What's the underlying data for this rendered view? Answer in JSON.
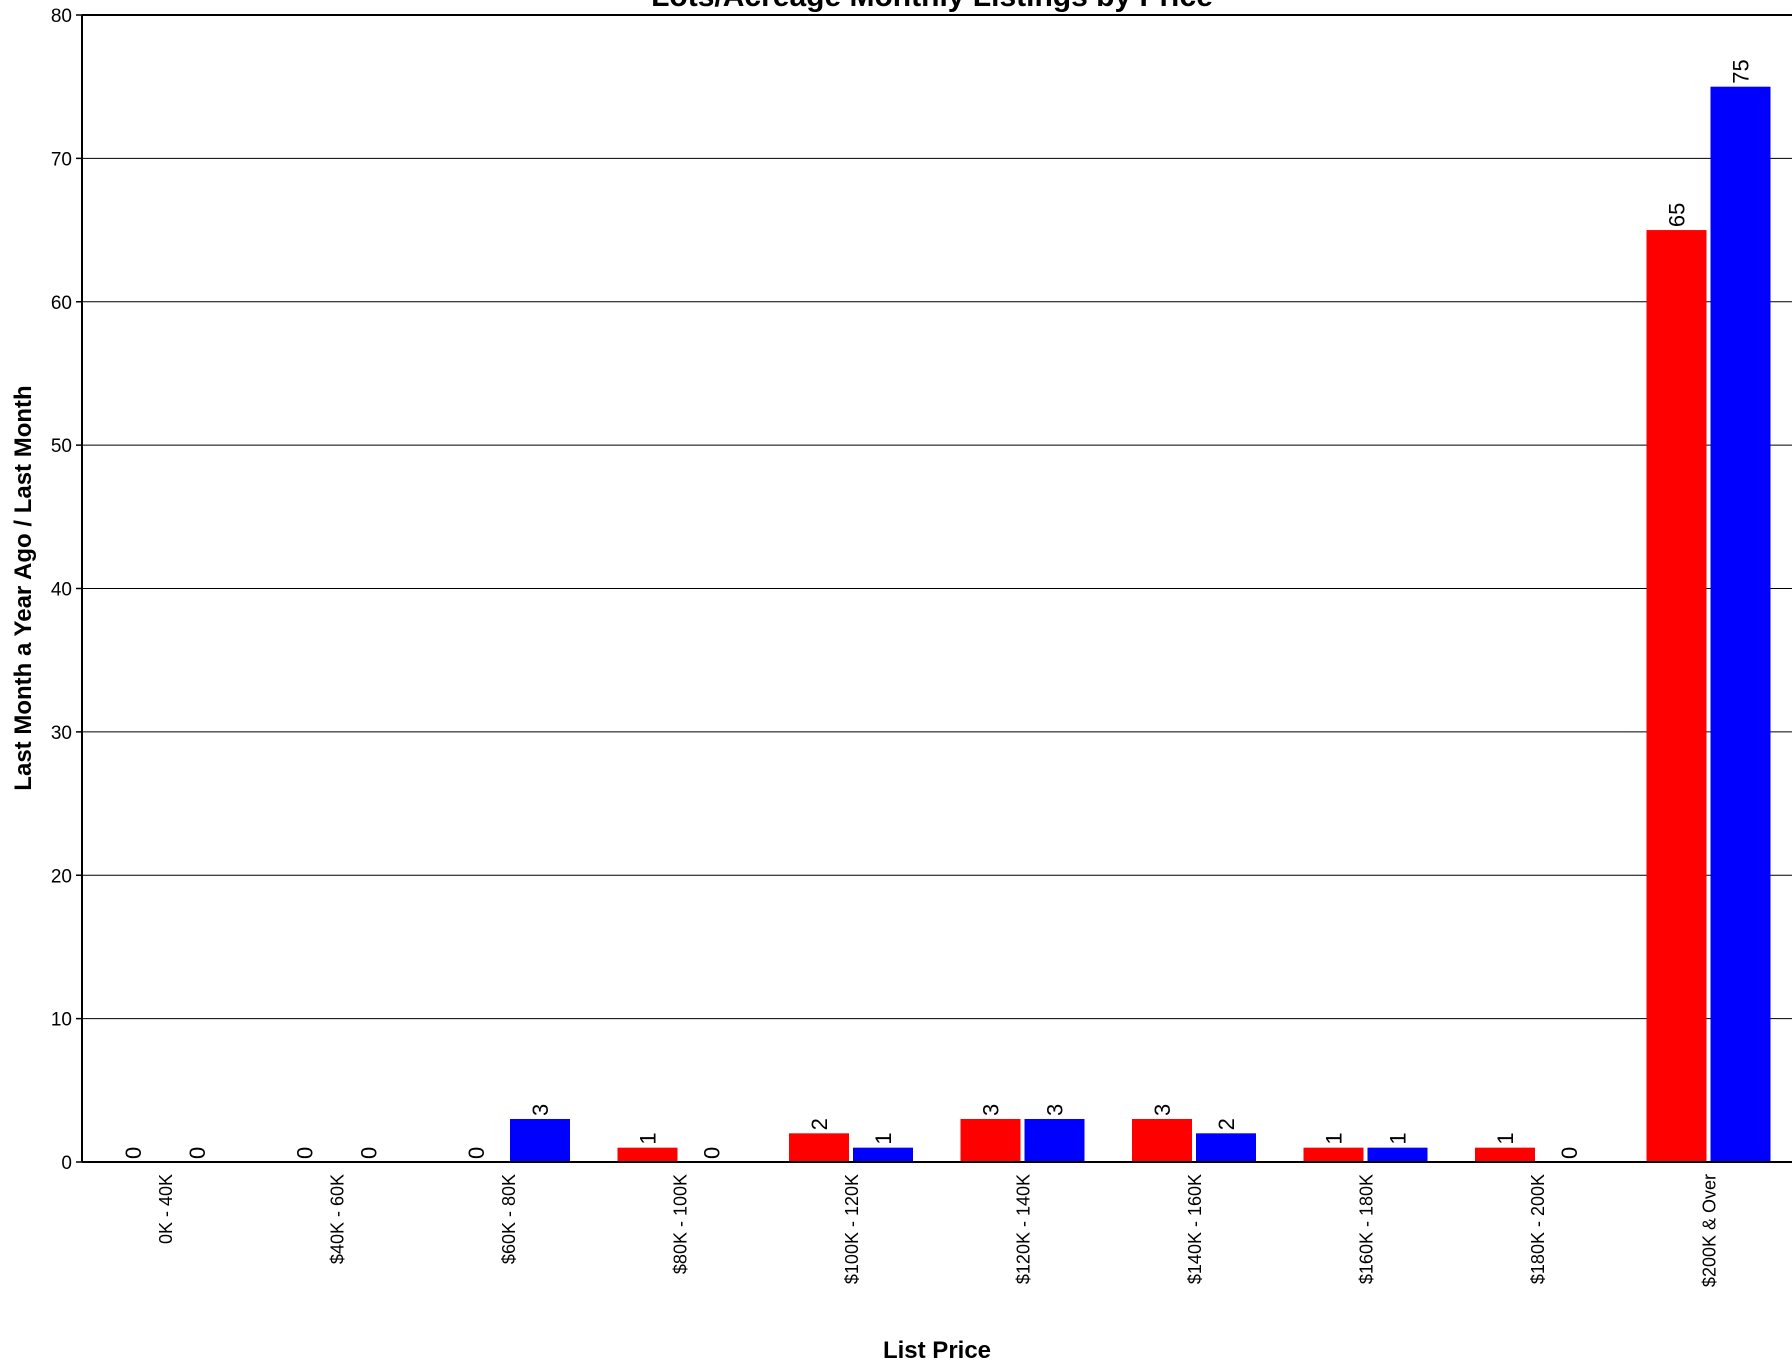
{
  "chart_data": {
    "type": "bar",
    "title": "Lots/Acreage Monthly Listings by Price",
    "xlabel": "List Price",
    "ylabel": "Last Month a Year Ago / Last Month",
    "ylim": [
      0,
      80
    ],
    "yticks": [
      0,
      10,
      20,
      30,
      40,
      50,
      60,
      70,
      80
    ],
    "grid": true,
    "categories": [
      "0K - 40K",
      "$40K - 60K",
      "$60K - 80K",
      "$80K - 100K",
      "$100K - 120K",
      "$120K - 140K",
      "$140K - 160K",
      "$160K - 180K",
      "$180K - 200K",
      "$200K & Over"
    ],
    "series": [
      {
        "values": [
          0,
          0,
          0,
          1,
          2,
          3,
          3,
          1,
          1,
          65
        ],
        "color": "#ff0000"
      },
      {
        "values": [
          0,
          0,
          3,
          0,
          1,
          3,
          2,
          1,
          0,
          75
        ],
        "color": "#0000ff"
      }
    ]
  }
}
